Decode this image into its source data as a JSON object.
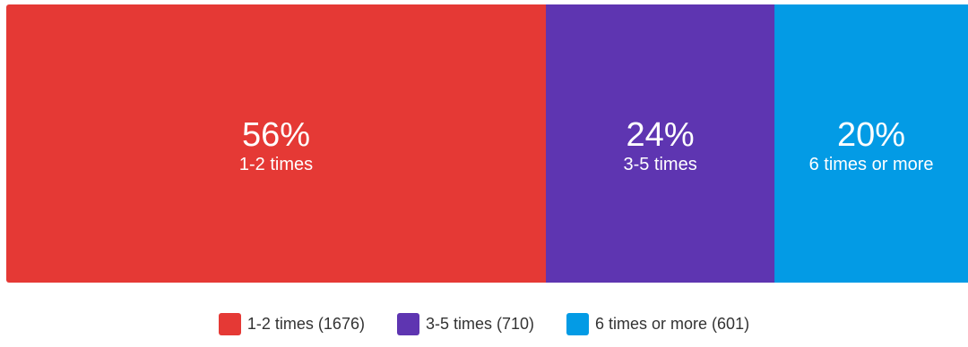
{
  "chart_data": {
    "type": "bar",
    "orientation": "horizontal-stacked-100",
    "title": "",
    "xlabel": "",
    "ylabel": "",
    "segments": [
      {
        "label": "1-2 times",
        "value": 1676,
        "percent_label": "56%",
        "legend_label": "1-2 times (1676)",
        "color": "#E53935"
      },
      {
        "label": "3-5 times",
        "value": 710,
        "percent_label": "24%",
        "legend_label": "3-5 times (710)",
        "color": "#5E35B1"
      },
      {
        "label": "6 times or more",
        "value": 601,
        "percent_label": "20%",
        "legend_label": "6 times or more (601)",
        "color": "#039BE5"
      }
    ],
    "legend_position": "bottom"
  }
}
